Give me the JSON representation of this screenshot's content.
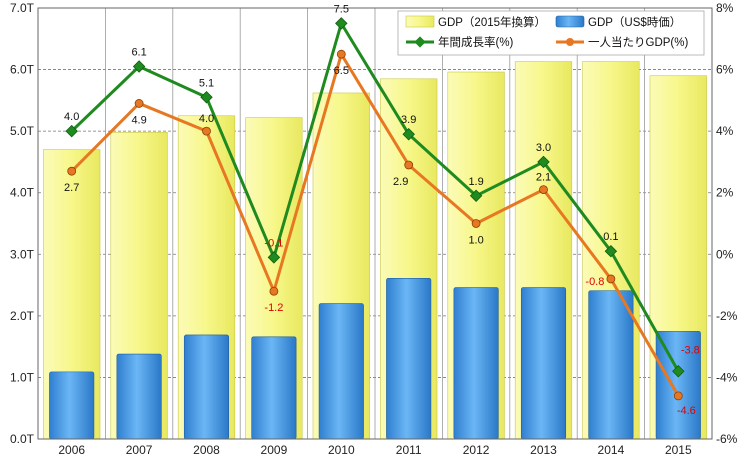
{
  "chart_data": {
    "type": "bar",
    "categories": [
      "2006",
      "2007",
      "2008",
      "2009",
      "2010",
      "2011",
      "2012",
      "2013",
      "2014",
      "2015"
    ],
    "y_left": {
      "range": [
        0,
        7
      ],
      "ticks": [
        0,
        1,
        2,
        3,
        4,
        5,
        6,
        7
      ],
      "tick_labels": [
        "0.0T",
        "1.0T",
        "2.0T",
        "3.0T",
        "4.0T",
        "5.0T",
        "6.0T",
        "7.0T"
      ]
    },
    "y_right": {
      "range": [
        -6,
        8
      ],
      "ticks": [
        -6,
        -4,
        -2,
        0,
        2,
        4,
        6,
        8
      ],
      "tick_labels": [
        "-6%",
        "-4%",
        "-2%",
        "0%",
        "2%",
        "4%",
        "6%",
        "8%"
      ]
    },
    "grid": true,
    "legend": "top-right",
    "series": [
      {
        "name": "GDP（2015年換算）",
        "kind": "bar",
        "axis": "left",
        "color": "#f5f57a",
        "values": [
          4.7,
          4.98,
          5.25,
          5.22,
          5.62,
          5.85,
          5.96,
          6.13,
          6.13,
          5.9
        ]
      },
      {
        "name": "GDP（US$時価）",
        "kind": "bar",
        "axis": "left",
        "color": "#4a9fe8",
        "values": [
          1.09,
          1.38,
          1.69,
          1.66,
          2.2,
          2.61,
          2.46,
          2.46,
          2.41,
          1.75
        ]
      },
      {
        "name": "年間成長率(%)",
        "kind": "line",
        "axis": "right",
        "color": "#1f8a1f",
        "values": [
          4.0,
          6.1,
          5.1,
          -0.1,
          7.5,
          3.9,
          1.9,
          3.0,
          0.1,
          -3.8
        ],
        "labels": [
          "4.0",
          "6.1",
          "5.1",
          "-0.1",
          "7.5",
          "3.9",
          "1.9",
          "3.0",
          "0.1",
          "-3.8"
        ]
      },
      {
        "name": "一人当たりGDP(%)",
        "kind": "line",
        "axis": "right",
        "color": "#e87722",
        "values": [
          2.7,
          4.9,
          4.0,
          -1.2,
          6.5,
          2.9,
          1.0,
          2.1,
          -0.8,
          -4.6
        ],
        "labels": [
          "2.7",
          "4.9",
          "4.0",
          "-1.2",
          "6.5",
          "2.9",
          "1.0",
          "2.1",
          "-0.8",
          "-4.6"
        ]
      }
    ]
  }
}
